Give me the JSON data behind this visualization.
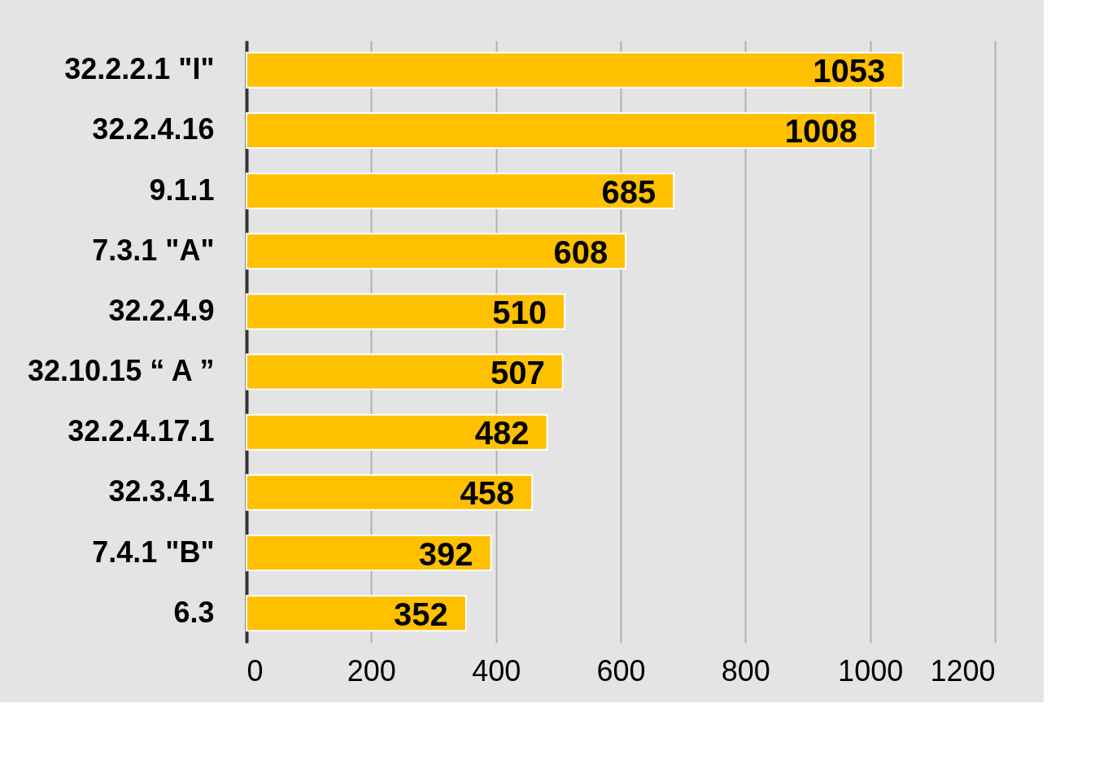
{
  "chart_data": {
    "type": "bar",
    "orientation": "horizontal",
    "categories": [
      "32.2.2.1 \"I\"",
      "32.2.4.16",
      "9.1.1",
      "7.3.1 \"A\"",
      "32.2.4.9",
      "32.10.15 “ A ”",
      "32.2.4.17.1",
      "32.3.4.1",
      "7.4.1 \"B\"",
      "6.3"
    ],
    "values": [
      1053,
      1008,
      685,
      608,
      510,
      507,
      482,
      458,
      392,
      352
    ],
    "color": "#ffc000",
    "xlim": [
      0,
      1200
    ],
    "xticks": [
      0,
      200,
      400,
      600,
      800,
      1000,
      1200
    ],
    "grid": "x",
    "data_labels": true
  }
}
